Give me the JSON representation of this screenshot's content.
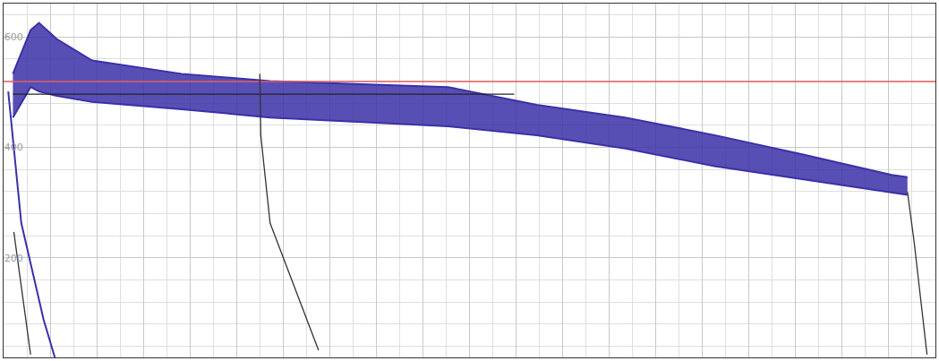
{
  "chart_data": {
    "type": "line",
    "xlim": [
      0,
      100
    ],
    "xticks": [
      0,
      5,
      10,
      15,
      20,
      25,
      30,
      35,
      40,
      45,
      50,
      55,
      60,
      65,
      70,
      75,
      80,
      85,
      90,
      95,
      100
    ],
    "ylim": [
      20,
      660
    ],
    "yticks": [
      200,
      400,
      600
    ],
    "grid": true,
    "tick_labels": "y",
    "series": [
      {
        "type": "line",
        "color": "#3b30a8",
        "line_style": "solid",
        "x": [
          1,
          2.9,
          3.8,
          5.7,
          9.5,
          19.1,
          28.6,
          38.1,
          47.7,
          57.2,
          66.7,
          76.3,
          85.8,
          95.3,
          97
        ],
        "values": [
          533,
          612,
          625,
          596,
          557,
          533,
          520,
          514,
          509,
          477,
          454,
          422,
          387,
          350,
          346
        ]
      },
      {
        "type": "area",
        "color": "#3b30a8",
        "line_style": "solid",
        "x": [
          1,
          2.9,
          3.8,
          5.7,
          9.5,
          19.1,
          28.6,
          38.1,
          47.7,
          57.2,
          66.7,
          76.3,
          85.8,
          95.3,
          97
        ],
        "values": [
          454,
          509,
          501,
          493,
          482,
          469,
          454,
          446,
          438,
          422,
          398,
          366,
          342,
          319,
          314
        ]
      },
      {
        "type": "line",
        "color": "#3b30a8",
        "line_style": "solid",
        "x": [
          0.5,
          1.9,
          4.3,
          5.5
        ],
        "values": [
          501,
          263,
          88,
          20
        ]
      },
      {
        "type": "line",
        "color": "#e06060",
        "line_style": "solid",
        "x": [
          0,
          100
        ],
        "values": [
          519,
          519
        ]
      },
      {
        "type": "line",
        "color": "#222222",
        "line_style": "solid",
        "x": [
          1,
          54.8
        ],
        "values": [
          496,
          496
        ]
      },
      {
        "type": "line",
        "color": "#333333",
        "line_style": "solid",
        "x": [
          27.5,
          27.6,
          28.6,
          31.5,
          33.8
        ],
        "values": [
          533,
          422,
          263,
          136,
          33
        ]
      },
      {
        "type": "line",
        "color": "#333333",
        "line_style": "solid",
        "x": [
          97,
          97.7,
          99.1
        ],
        "values": [
          319,
          231,
          25
        ]
      },
      {
        "type": "line",
        "color": "#333333",
        "line_style": "solid",
        "x": [
          1.1,
          2.9
        ],
        "values": [
          247,
          25
        ]
      }
    ]
  }
}
